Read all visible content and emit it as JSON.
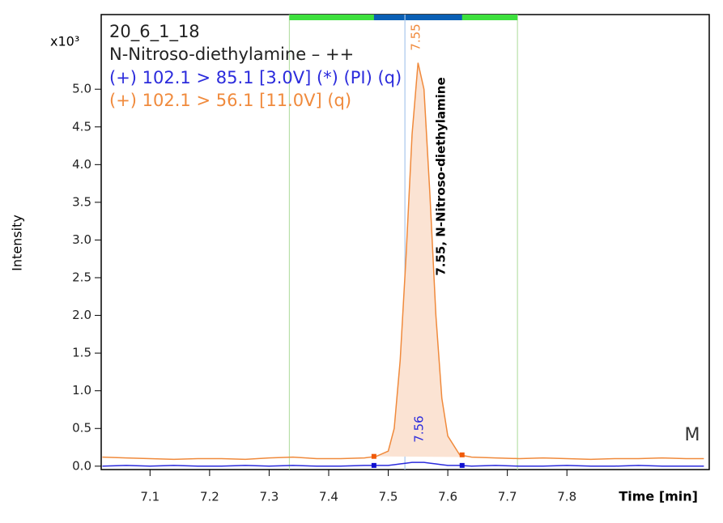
{
  "chart_data": {
    "type": "line",
    "sample": "20_6_1_18",
    "compound": "N-Nitroso-diethylamine – ++",
    "y_multiplier": "x10³",
    "ylabel": "Intensity",
    "xlabel": "Time [min]",
    "peak_annotation": "7.55, N-Nitroso-diethylamine",
    "marker_text": "M",
    "x": [
      7.02,
      7.06,
      7.1,
      7.14,
      7.18,
      7.22,
      7.26,
      7.3,
      7.34,
      7.38,
      7.42,
      7.46,
      7.48,
      7.5,
      7.51,
      7.52,
      7.53,
      7.54,
      7.55,
      7.56,
      7.57,
      7.58,
      7.59,
      7.6,
      7.62,
      7.64,
      7.68,
      7.72,
      7.76,
      7.8,
      7.84,
      7.88,
      7.92,
      7.96,
      8.0,
      8.03
    ],
    "series": [
      {
        "name": "(+) 102.1 > 85.1 [3.0V] (*) (PI) (q)",
        "color": "#2b2bdc",
        "values": [
          0.0,
          0.01,
          0.0,
          0.01,
          0.0,
          0.0,
          0.01,
          0.0,
          0.01,
          0.0,
          0.0,
          0.01,
          0.01,
          0.01,
          0.02,
          0.03,
          0.04,
          0.05,
          0.05,
          0.05,
          0.04,
          0.03,
          0.02,
          0.01,
          0.01,
          0.0,
          0.01,
          0.0,
          0.0,
          0.01,
          0.0,
          0.0,
          0.01,
          0.0,
          0.0,
          0.0
        ],
        "peak_label": "7.56"
      },
      {
        "name": "(+) 102.1 > 56.1 [11.0V] (q)",
        "color": "#f08a3c",
        "values": [
          0.12,
          0.11,
          0.1,
          0.09,
          0.1,
          0.1,
          0.09,
          0.11,
          0.12,
          0.1,
          0.1,
          0.11,
          0.13,
          0.2,
          0.5,
          1.4,
          2.8,
          4.4,
          5.35,
          5.0,
          3.6,
          2.0,
          0.9,
          0.4,
          0.15,
          0.12,
          0.11,
          0.1,
          0.11,
          0.1,
          0.09,
          0.1,
          0.1,
          0.11,
          0.1,
          0.1
        ],
        "peak_label": "7.55"
      }
    ],
    "integration_window": [
      7.334,
      7.717
    ],
    "peak_window": [
      7.476,
      7.624
    ],
    "rt_line": 7.528,
    "xlim": [
      7.018,
      8.039
    ],
    "ylim": [
      -0.045,
      5.99
    ],
    "xticks": [
      7.1,
      7.2,
      7.3,
      7.4,
      7.5,
      7.6,
      7.7,
      7.8
    ],
    "yticks": [
      {
        "value": 0,
        "label": "0.0"
      },
      0.5,
      {
        "value": 1,
        "label": "1.0"
      },
      1.5,
      {
        "value": 2,
        "label": "2.0"
      },
      2.5,
      {
        "value": 3,
        "label": "3.0"
      },
      3.5,
      {
        "value": 4,
        "label": "4.0"
      },
      4.5,
      {
        "value": 5,
        "label": "5.0"
      }
    ]
  }
}
